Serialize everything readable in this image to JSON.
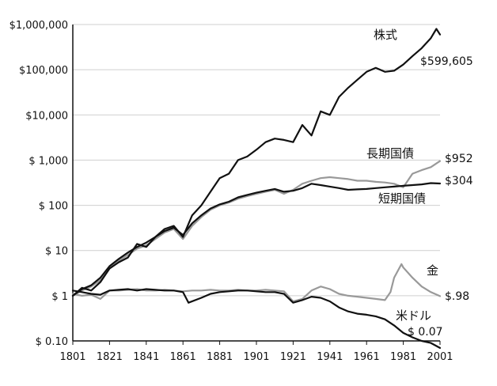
{
  "chart_data": {
    "type": "line",
    "title": "",
    "xlabel": "",
    "ylabel": "",
    "y_scale": "log",
    "xlim": [
      1801,
      2001
    ],
    "ylim": [
      0.1,
      1000000
    ],
    "grid": "horizontal",
    "legend": "none",
    "x_ticks": [
      "1801",
      "1821",
      "1841",
      "1861",
      "1881",
      "1901",
      "1921",
      "1941",
      "1961",
      "1981",
      "2001"
    ],
    "y_ticks": [
      {
        "value": 1000000,
        "label": "$1,000,000"
      },
      {
        "value": 100000,
        "label": "$100,000"
      },
      {
        "value": 10000,
        "label": "$10,000"
      },
      {
        "value": 1000,
        "label": "$ 1,000"
      },
      {
        "value": 100,
        "label": "$ 100"
      },
      {
        "value": 10,
        "label": "$ 10"
      },
      {
        "value": 1,
        "label": "$ 1"
      },
      {
        "value": 0.1,
        "label": "$ 0.10"
      }
    ],
    "series": [
      {
        "name": "株式",
        "end_label": "$599,605",
        "color": "#111111",
        "x": [
          1801,
          1806,
          1811,
          1816,
          1821,
          1826,
          1831,
          1836,
          1841,
          1846,
          1851,
          1856,
          1861,
          1866,
          1871,
          1876,
          1881,
          1886,
          1891,
          1896,
          1901,
          1906,
          1911,
          1916,
          1921,
          1926,
          1931,
          1936,
          1941,
          1946,
          1951,
          1956,
          1961,
          1966,
          1971,
          1976,
          1981,
          1986,
          1991,
          1996,
          1999,
          2001
        ],
        "values": [
          1,
          1.5,
          1.3,
          2,
          4,
          5.5,
          7,
          14,
          12,
          20,
          30,
          35,
          20,
          60,
          100,
          200,
          400,
          500,
          1000,
          1200,
          1700,
          2500,
          3000,
          2800,
          2500,
          6000,
          3500,
          12000,
          10000,
          25000,
          40000,
          60000,
          90000,
          110000,
          90000,
          95000,
          130000,
          200000,
          300000,
          500000,
          800000,
          599605
        ]
      },
      {
        "name": "長期国債",
        "end_label": "$952",
        "color": "#999999",
        "x": [
          1801,
          1806,
          1811,
          1816,
          1821,
          1826,
          1831,
          1836,
          1841,
          1846,
          1851,
          1856,
          1861,
          1866,
          1871,
          1876,
          1881,
          1886,
          1891,
          1896,
          1901,
          1906,
          1911,
          1916,
          1921,
          1926,
          1931,
          1936,
          1941,
          1946,
          1951,
          1956,
          1961,
          1966,
          1971,
          1976,
          1981,
          1986,
          1991,
          1996,
          2001
        ],
        "values": [
          1,
          1.3,
          1.6,
          2.2,
          4,
          6,
          8,
          11,
          13,
          18,
          25,
          30,
          18,
          35,
          55,
          80,
          100,
          115,
          140,
          160,
          180,
          200,
          220,
          180,
          220,
          300,
          350,
          400,
          420,
          400,
          380,
          350,
          350,
          330,
          320,
          300,
          250,
          500,
          600,
          700,
          952
        ]
      },
      {
        "name": "短期国債",
        "end_label": "$304",
        "color": "#111111",
        "x": [
          1801,
          1806,
          1811,
          1816,
          1821,
          1826,
          1831,
          1836,
          1841,
          1846,
          1851,
          1856,
          1861,
          1866,
          1871,
          1876,
          1881,
          1886,
          1891,
          1896,
          1901,
          1906,
          1911,
          1916,
          1921,
          1926,
          1931,
          1936,
          1941,
          1946,
          1951,
          1956,
          1961,
          1966,
          1971,
          1976,
          1981,
          1986,
          1991,
          1996,
          2001
        ],
        "values": [
          1,
          1.4,
          1.7,
          2.5,
          4.5,
          6.5,
          9,
          12,
          15,
          20,
          27,
          32,
          22,
          40,
          60,
          85,
          105,
          120,
          150,
          170,
          190,
          210,
          230,
          200,
          210,
          240,
          300,
          280,
          260,
          240,
          220,
          225,
          230,
          240,
          250,
          260,
          270,
          280,
          290,
          310,
          304
        ]
      },
      {
        "name": "金",
        "end_label": "$.98",
        "color": "#999999",
        "x": [
          1801,
          1806,
          1811,
          1816,
          1821,
          1826,
          1831,
          1836,
          1841,
          1846,
          1851,
          1856,
          1861,
          1866,
          1871,
          1876,
          1881,
          1886,
          1891,
          1896,
          1901,
          1906,
          1911,
          1916,
          1921,
          1926,
          1931,
          1936,
          1941,
          1946,
          1951,
          1956,
          1961,
          1966,
          1971,
          1974,
          1976,
          1980,
          1981,
          1986,
          1991,
          1996,
          2001
        ],
        "values": [
          1.1,
          1.0,
          1.05,
          0.85,
          1.3,
          1.3,
          1.35,
          1.4,
          1.3,
          1.3,
          1.35,
          1.3,
          1.25,
          1.3,
          1.3,
          1.35,
          1.3,
          1.3,
          1.35,
          1.3,
          1.3,
          1.35,
          1.3,
          1.25,
          0.75,
          0.85,
          1.3,
          1.6,
          1.4,
          1.1,
          1.0,
          0.95,
          0.9,
          0.85,
          0.8,
          1.2,
          2.5,
          5,
          4.2,
          2.5,
          1.6,
          1.2,
          0.98
        ]
      },
      {
        "name": "米ドル",
        "end_label": "$ 0.07",
        "color": "#111111",
        "x": [
          1801,
          1806,
          1811,
          1816,
          1821,
          1826,
          1831,
          1836,
          1841,
          1846,
          1851,
          1856,
          1861,
          1864,
          1871,
          1876,
          1881,
          1886,
          1891,
          1896,
          1901,
          1906,
          1911,
          1916,
          1921,
          1926,
          1931,
          1936,
          1941,
          1946,
          1951,
          1956,
          1961,
          1966,
          1971,
          1976,
          1981,
          1986,
          1991,
          1996,
          2001
        ],
        "values": [
          1.3,
          1.2,
          1.1,
          1.05,
          1.3,
          1.35,
          1.4,
          1.3,
          1.4,
          1.35,
          1.3,
          1.3,
          1.2,
          0.7,
          0.9,
          1.1,
          1.2,
          1.25,
          1.3,
          1.3,
          1.25,
          1.2,
          1.2,
          1.1,
          0.7,
          0.8,
          0.95,
          0.9,
          0.75,
          0.55,
          0.45,
          0.4,
          0.38,
          0.35,
          0.3,
          0.22,
          0.15,
          0.12,
          0.1,
          0.09,
          0.07
        ]
      }
    ]
  }
}
